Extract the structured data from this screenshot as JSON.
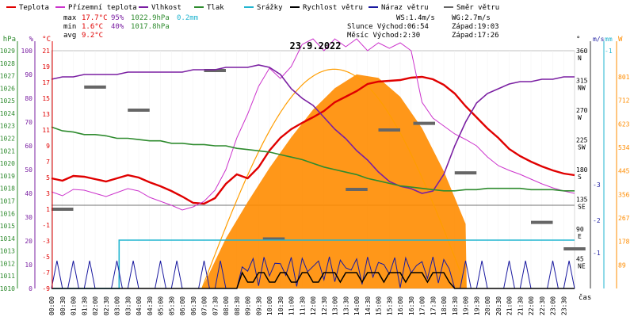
{
  "legend": [
    {
      "label": "Teplota",
      "color": "#e00000"
    },
    {
      "label": "Přízemní teplota",
      "color": "#cc33cc"
    },
    {
      "label": "Vlhkost",
      "color": "#7a1fa2"
    },
    {
      "label": "Tlak",
      "color": "#2e8b2e"
    },
    {
      "label": "Srážky",
      "color": "#22b5d0"
    },
    {
      "label": "Rychlost větru",
      "color": "#000000"
    },
    {
      "label": "Náraz větru",
      "color": "#1a1aa0"
    },
    {
      "label": "Směr větru",
      "color": "#666666"
    }
  ],
  "stats": {
    "max": {
      "label": "max",
      "temp": "17.7°C",
      "hum": "95%",
      "press": "1022.9hPa",
      "rain": "0.2mm"
    },
    "min": {
      "label": "min",
      "temp": "1.6°C",
      "hum": "40%",
      "press": "1017.8hPa"
    },
    "avg": {
      "label": "avg",
      "temp": "9.2°C"
    }
  },
  "info": {
    "ws": "WS:1.4m/s",
    "wg": "WG:2.7m/s",
    "sun_rise": "Slunce Východ:06:54",
    "sun_set": "Západ:19:03",
    "moon_rise": "Měsíc  Východ:2:30",
    "moon_set": "Západ:17:26"
  },
  "chart_data": {
    "type": "line",
    "title": "23.9.2022",
    "x_unit": "čas",
    "x_ticks": [
      "00:00",
      "00:30",
      "01:00",
      "01:30",
      "02:00",
      "02:30",
      "03:00",
      "03:30",
      "04:00",
      "04:30",
      "05:00",
      "05:30",
      "06:00",
      "06:30",
      "07:00",
      "07:30",
      "08:00",
      "08:30",
      "09:00",
      "09:30",
      "10:00",
      "10:30",
      "11:00",
      "11:30",
      "12:00",
      "12:30",
      "13:00",
      "13:30",
      "14:00",
      "14:30",
      "15:00",
      "15:30",
      "16:00",
      "16:30",
      "17:00",
      "17:30",
      "18:00",
      "18:30",
      "19:00",
      "19:30",
      "20:00",
      "20:30",
      "21:00",
      "21:30",
      "22:00",
      "22:30",
      "23:00",
      "23:30"
    ],
    "axes": {
      "hpa": {
        "unit": "hPa",
        "color": "#2e8b2e",
        "ticks": [
          "1029",
          "1028",
          "1027",
          "1026",
          "1025",
          "1024",
          "1023",
          "1022",
          "1021",
          "1020",
          "1019",
          "1018",
          "1017",
          "1016",
          "1015",
          "1014",
          "1013",
          "1012",
          "1011",
          "1010"
        ],
        "range": [
          1010,
          1029
        ]
      },
      "pct": {
        "unit": "%",
        "color": "#7a1fa2",
        "ticks": [
          "100",
          "90",
          "80",
          "70",
          "60",
          "50",
          "40",
          "30",
          "20",
          "10",
          "0"
        ],
        "range": [
          0,
          100
        ]
      },
      "temp": {
        "unit": "°C",
        "color": "#e00000",
        "ticks": [
          "21",
          "19",
          "17",
          "15",
          "13",
          "11",
          "9",
          "7",
          "5",
          "3",
          "1",
          "-1",
          "-3",
          "-5",
          "-7",
          "-9"
        ],
        "range": [
          -9,
          21
        ]
      },
      "dir": {
        "unit": "°",
        "color": "#000000",
        "ticks": [
          "360",
          "315",
          "270",
          "225",
          "180",
          "135",
          "90",
          "45"
        ],
        "labels": [
          "N",
          "NW",
          "W",
          "SW",
          "S",
          "SE",
          "E",
          "NE"
        ],
        "range": [
          0,
          360
        ]
      },
      "ms": {
        "unit": "m/s",
        "color": "#1a1aa0",
        "ticks": [
          "-1",
          "-2",
          "-3"
        ]
      },
      "mm": {
        "unit": "mm",
        "color": "#22b5d0",
        "ticks": [
          "-1"
        ]
      },
      "wm2": {
        "unit": "W",
        "color": "#ff8c00",
        "ticks": [
          "801",
          "712",
          "623",
          "534",
          "445",
          "356",
          "267",
          "178",
          "89"
        ],
        "range": [
          0,
          900
        ]
      }
    },
    "series": [
      {
        "name": "Teplota",
        "color": "#e00000",
        "points": [
          [
            0,
            4.9
          ],
          [
            0.5,
            4.6
          ],
          [
            1,
            5.2
          ],
          [
            1.5,
            5.1
          ],
          [
            2,
            4.8
          ],
          [
            2.5,
            4.5
          ],
          [
            3,
            4.9
          ],
          [
            3.5,
            5.3
          ],
          [
            4,
            5.0
          ],
          [
            4.5,
            4.4
          ],
          [
            5,
            3.9
          ],
          [
            5.5,
            3.3
          ],
          [
            6,
            2.6
          ],
          [
            6.5,
            1.8
          ],
          [
            7,
            1.7
          ],
          [
            7.5,
            2.4
          ],
          [
            8,
            4.2
          ],
          [
            8.5,
            5.4
          ],
          [
            9,
            4.9
          ],
          [
            9.5,
            6.3
          ],
          [
            10,
            8.4
          ],
          [
            10.5,
            10.0
          ],
          [
            11,
            11.1
          ],
          [
            11.5,
            11.9
          ],
          [
            12,
            12.6
          ],
          [
            12.5,
            13.4
          ],
          [
            13,
            14.5
          ],
          [
            13.5,
            15.2
          ],
          [
            14,
            15.9
          ],
          [
            14.5,
            16.8
          ],
          [
            15,
            17.1
          ],
          [
            15.5,
            17.2
          ],
          [
            16,
            17.3
          ],
          [
            16.5,
            17.6
          ],
          [
            17,
            17.7
          ],
          [
            17.5,
            17.4
          ],
          [
            18,
            16.7
          ],
          [
            18.5,
            15.6
          ],
          [
            19,
            14.0
          ],
          [
            19.5,
            12.6
          ],
          [
            20,
            11.2
          ],
          [
            20.5,
            10.0
          ],
          [
            21,
            8.6
          ],
          [
            21.5,
            7.7
          ],
          [
            22,
            7.0
          ],
          [
            22.5,
            6.4
          ],
          [
            23,
            5.9
          ],
          [
            23.5,
            5.5
          ],
          [
            24,
            5.3
          ]
        ]
      },
      {
        "name": "Přízemní teplota",
        "color": "#cc33cc",
        "points": [
          [
            0,
            3.2
          ],
          [
            0.5,
            2.7
          ],
          [
            1,
            3.5
          ],
          [
            1.5,
            3.4
          ],
          [
            2,
            3.0
          ],
          [
            2.5,
            2.6
          ],
          [
            3,
            3.1
          ],
          [
            3.5,
            3.6
          ],
          [
            4,
            3.3
          ],
          [
            4.5,
            2.5
          ],
          [
            5,
            2.0
          ],
          [
            5.5,
            1.5
          ],
          [
            6,
            0.9
          ],
          [
            6.5,
            1.3
          ],
          [
            7,
            2.0
          ],
          [
            7.5,
            3.4
          ],
          [
            8,
            6.0
          ],
          [
            8.5,
            10.0
          ],
          [
            9,
            13.0
          ],
          [
            9.5,
            16.5
          ],
          [
            10,
            18.8
          ],
          [
            10.5,
            17.5
          ],
          [
            11,
            19.0
          ],
          [
            11.5,
            21.8
          ],
          [
            12,
            22.5
          ],
          [
            12.5,
            21.0
          ],
          [
            13,
            22.5
          ],
          [
            13.5,
            21.5
          ],
          [
            14,
            22.5
          ],
          [
            14.5,
            21.0
          ],
          [
            15,
            22.0
          ],
          [
            15.5,
            21.3
          ],
          [
            16,
            22.0
          ],
          [
            16.5,
            21.0
          ],
          [
            17,
            14.5
          ],
          [
            17.5,
            12.5
          ],
          [
            18,
            11.5
          ],
          [
            18.5,
            10.5
          ],
          [
            19,
            9.8
          ],
          [
            19.5,
            9.0
          ],
          [
            20,
            7.6
          ],
          [
            20.5,
            6.5
          ],
          [
            21,
            5.9
          ],
          [
            21.5,
            5.4
          ],
          [
            22,
            4.8
          ],
          [
            22.5,
            4.2
          ],
          [
            23,
            3.7
          ],
          [
            23.5,
            3.3
          ],
          [
            24,
            3.0
          ]
        ]
      },
      {
        "name": "Vlhkost",
        "color": "#7a1fa2",
        "points": [
          [
            0,
            88
          ],
          [
            0.5,
            89
          ],
          [
            1,
            89
          ],
          [
            1.5,
            90
          ],
          [
            2,
            90
          ],
          [
            2.5,
            90
          ],
          [
            3,
            90
          ],
          [
            3.5,
            91
          ],
          [
            4,
            91
          ],
          [
            4.5,
            91
          ],
          [
            5,
            91
          ],
          [
            5.5,
            91
          ],
          [
            6,
            91
          ],
          [
            6.5,
            92
          ],
          [
            7,
            92
          ],
          [
            7.5,
            92
          ],
          [
            8,
            93
          ],
          [
            8.5,
            93
          ],
          [
            9,
            93
          ],
          [
            9.5,
            94
          ],
          [
            10,
            93
          ],
          [
            10.5,
            90
          ],
          [
            11,
            84
          ],
          [
            11.5,
            80
          ],
          [
            12,
            77
          ],
          [
            12.5,
            72
          ],
          [
            13,
            67
          ],
          [
            13.5,
            63
          ],
          [
            14,
            58
          ],
          [
            14.5,
            54
          ],
          [
            15,
            49
          ],
          [
            15.5,
            45
          ],
          [
            16,
            43
          ],
          [
            16.5,
            42
          ],
          [
            17,
            40
          ],
          [
            17.5,
            41
          ],
          [
            18,
            48
          ],
          [
            18.5,
            60
          ],
          [
            19,
            70
          ],
          [
            19.5,
            78
          ],
          [
            20,
            82
          ],
          [
            20.5,
            84
          ],
          [
            21,
            86
          ],
          [
            21.5,
            87
          ],
          [
            22,
            87
          ],
          [
            22.5,
            88
          ],
          [
            23,
            88
          ],
          [
            23.5,
            89
          ],
          [
            24,
            89
          ]
        ]
      },
      {
        "name": "Tlak",
        "color": "#2e8b2e",
        "points": [
          [
            0,
            1022.9
          ],
          [
            0.5,
            1022.6
          ],
          [
            1,
            1022.5
          ],
          [
            1.5,
            1022.3
          ],
          [
            2,
            1022.3
          ],
          [
            2.5,
            1022.2
          ],
          [
            3,
            1022.0
          ],
          [
            3.5,
            1022.0
          ],
          [
            4,
            1021.9
          ],
          [
            4.5,
            1021.8
          ],
          [
            5,
            1021.8
          ],
          [
            5.5,
            1021.6
          ],
          [
            6,
            1021.6
          ],
          [
            6.5,
            1021.5
          ],
          [
            7,
            1021.5
          ],
          [
            7.5,
            1021.4
          ],
          [
            8,
            1021.4
          ],
          [
            8.5,
            1021.2
          ],
          [
            9,
            1021.1
          ],
          [
            9.5,
            1021.0
          ],
          [
            10,
            1020.9
          ],
          [
            10.5,
            1020.7
          ],
          [
            11,
            1020.5
          ],
          [
            11.5,
            1020.3
          ],
          [
            12,
            1020.0
          ],
          [
            12.5,
            1019.7
          ],
          [
            13,
            1019.5
          ],
          [
            13.5,
            1019.3
          ],
          [
            14,
            1019.1
          ],
          [
            14.5,
            1018.8
          ],
          [
            15,
            1018.6
          ],
          [
            15.5,
            1018.4
          ],
          [
            16,
            1018.2
          ],
          [
            16.5,
            1018.1
          ],
          [
            17,
            1018.0
          ],
          [
            17.5,
            1017.9
          ],
          [
            18,
            1017.8
          ],
          [
            18.5,
            1017.8
          ],
          [
            19,
            1017.9
          ],
          [
            19.5,
            1017.9
          ],
          [
            20,
            1018.0
          ],
          [
            20.5,
            1018.0
          ],
          [
            21,
            1018.0
          ],
          [
            21.5,
            1018.0
          ],
          [
            22,
            1017.9
          ],
          [
            22.5,
            1017.9
          ],
          [
            23,
            1017.9
          ],
          [
            23.5,
            1017.8
          ],
          [
            24,
            1017.8
          ]
        ]
      },
      {
        "name": "Srážky",
        "color": "#22b5d0",
        "points": [
          [
            0,
            -9
          ],
          [
            3.1,
            -9
          ],
          [
            3.1,
            -2.9
          ],
          [
            24,
            -2.9
          ]
        ]
      },
      {
        "name": "Slunce",
        "color": "#ff9d00",
        "points": [
          [
            6.9,
            0
          ],
          [
            8,
            180
          ],
          [
            9,
            330
          ],
          [
            10,
            470
          ],
          [
            11,
            590
          ],
          [
            12,
            690
          ],
          [
            13,
            760
          ],
          [
            14,
            800
          ],
          [
            15,
            780
          ],
          [
            16,
            710
          ],
          [
            17,
            600
          ],
          [
            18,
            450
          ],
          [
            19,
            260
          ],
          [
            19.05,
            0
          ]
        ]
      },
      {
        "name": "Směr větru",
        "color": "#666666",
        "points": [
          [
            0,
            120
          ],
          [
            1.5,
            305
          ],
          [
            3.5,
            270
          ],
          [
            7,
            330
          ],
          [
            9.7,
            75
          ],
          [
            13.5,
            150
          ],
          [
            15,
            240
          ],
          [
            16.6,
            250
          ],
          [
            18.5,
            175
          ],
          [
            22,
            100
          ],
          [
            23.5,
            60
          ]
        ]
      }
    ]
  }
}
